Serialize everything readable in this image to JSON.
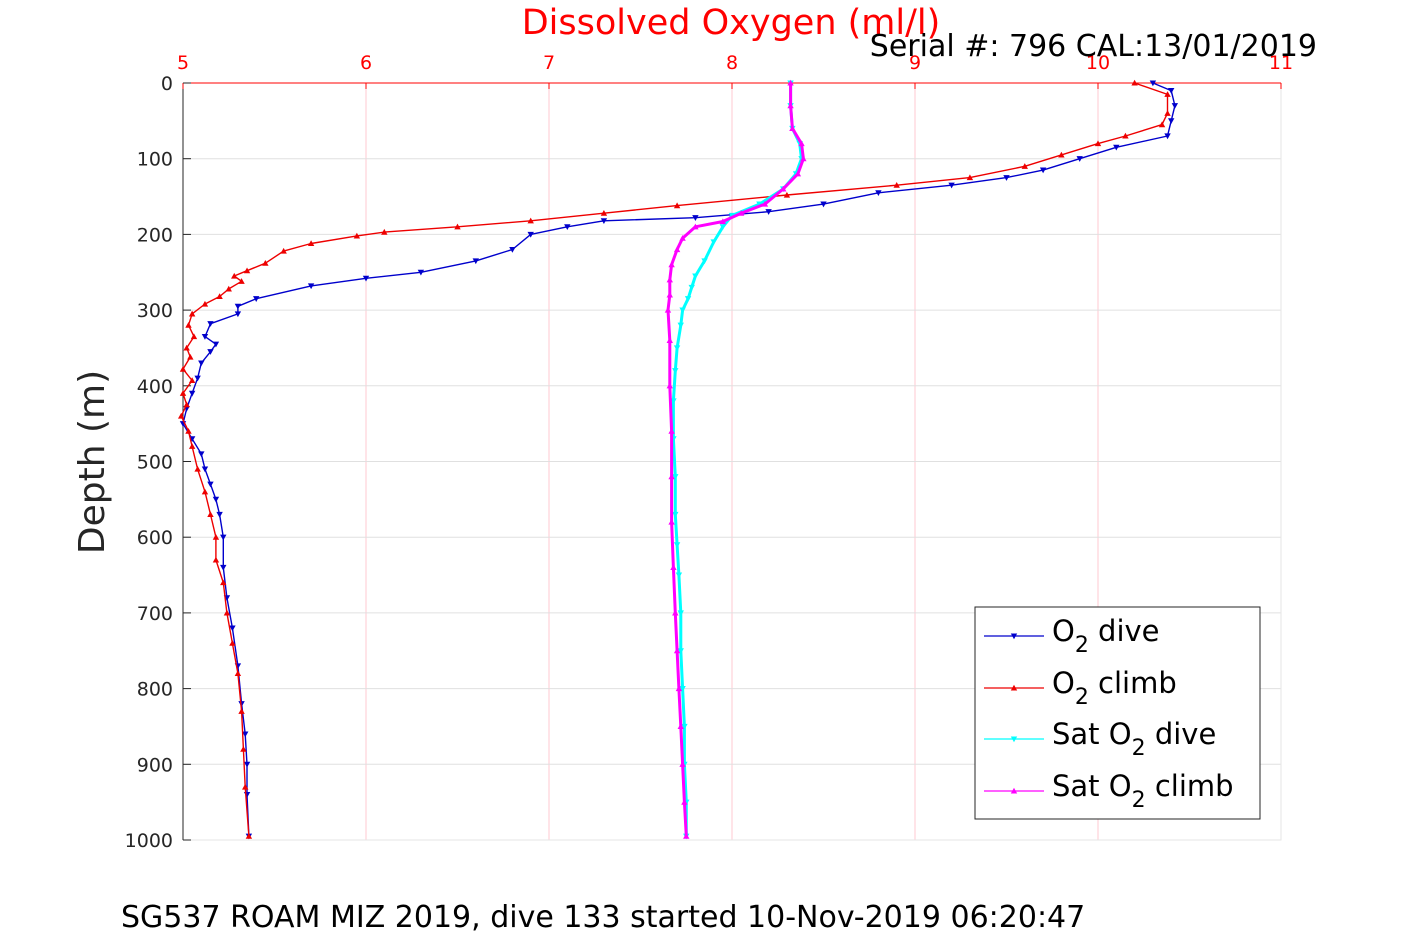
{
  "chart_data": {
    "type": "line",
    "title": "Dissolved Oxygen (ml/l)",
    "subtitle": "Serial #: 796  CAL:13/01/2019",
    "xlabel": "",
    "ylabel": "Depth (m)",
    "footer": "SG537 ROAM MIZ 2019, dive 133 started 10-Nov-2019 06:20:47",
    "xlim": [
      5,
      11
    ],
    "ylim": [
      0,
      1000
    ],
    "y_reversed": true,
    "x_axis_position": "top",
    "x_ticks": [
      "5",
      "6",
      "7",
      "8",
      "9",
      "10",
      "11"
    ],
    "y_ticks": [
      "0",
      "100",
      "200",
      "300",
      "400",
      "500",
      "600",
      "700",
      "800",
      "900",
      "1000"
    ],
    "grid": true,
    "legend_position": "bottom-right",
    "colors": {
      "axis_ticks_x": "#ff0000",
      "grid": "#e0e0e0",
      "grid_x": "#ffc8d2"
    },
    "series": [
      {
        "name": "O₂ dive",
        "legend": {
          "prefix": "O",
          "sub": "2",
          "suffix": " dive"
        },
        "color": "#0000cc",
        "marker": "triangle-down",
        "points": [
          [
            10.3,
            0
          ],
          [
            10.4,
            10
          ],
          [
            10.42,
            30
          ],
          [
            10.4,
            50
          ],
          [
            10.38,
            70
          ],
          [
            10.1,
            85
          ],
          [
            9.9,
            100
          ],
          [
            9.7,
            115
          ],
          [
            9.5,
            125
          ],
          [
            9.2,
            135
          ],
          [
            8.8,
            145
          ],
          [
            8.5,
            160
          ],
          [
            8.2,
            170
          ],
          [
            7.8,
            178
          ],
          [
            7.3,
            182
          ],
          [
            7.1,
            190
          ],
          [
            6.9,
            200
          ],
          [
            6.8,
            220
          ],
          [
            6.6,
            235
          ],
          [
            6.3,
            250
          ],
          [
            6.0,
            258
          ],
          [
            5.7,
            268
          ],
          [
            5.4,
            285
          ],
          [
            5.3,
            295
          ],
          [
            5.3,
            305
          ],
          [
            5.15,
            318
          ],
          [
            5.12,
            335
          ],
          [
            5.18,
            345
          ],
          [
            5.15,
            355
          ],
          [
            5.1,
            370
          ],
          [
            5.08,
            390
          ],
          [
            5.05,
            410
          ],
          [
            5.02,
            430
          ],
          [
            5.0,
            450
          ],
          [
            5.05,
            470
          ],
          [
            5.1,
            490
          ],
          [
            5.12,
            510
          ],
          [
            5.15,
            530
          ],
          [
            5.18,
            550
          ],
          [
            5.2,
            570
          ],
          [
            5.22,
            600
          ],
          [
            5.22,
            640
          ],
          [
            5.24,
            680
          ],
          [
            5.27,
            720
          ],
          [
            5.3,
            770
          ],
          [
            5.32,
            820
          ],
          [
            5.34,
            860
          ],
          [
            5.35,
            900
          ],
          [
            5.35,
            940
          ],
          [
            5.36,
            995
          ]
        ]
      },
      {
        "name": "O₂ climb",
        "legend": {
          "prefix": "O",
          "sub": "2",
          "suffix": " climb"
        },
        "color": "#ee0000",
        "marker": "triangle-up",
        "points": [
          [
            10.2,
            0
          ],
          [
            10.38,
            15
          ],
          [
            10.38,
            40
          ],
          [
            10.35,
            55
          ],
          [
            10.15,
            70
          ],
          [
            10.0,
            80
          ],
          [
            9.8,
            95
          ],
          [
            9.6,
            110
          ],
          [
            9.3,
            125
          ],
          [
            8.9,
            135
          ],
          [
            8.3,
            148
          ],
          [
            7.7,
            162
          ],
          [
            7.3,
            172
          ],
          [
            6.9,
            182
          ],
          [
            6.5,
            190
          ],
          [
            6.1,
            197
          ],
          [
            5.95,
            202
          ],
          [
            5.7,
            212
          ],
          [
            5.55,
            222
          ],
          [
            5.45,
            238
          ],
          [
            5.35,
            248
          ],
          [
            5.28,
            255
          ],
          [
            5.32,
            262
          ],
          [
            5.25,
            272
          ],
          [
            5.2,
            282
          ],
          [
            5.12,
            292
          ],
          [
            5.05,
            305
          ],
          [
            5.03,
            320
          ],
          [
            5.06,
            335
          ],
          [
            5.02,
            350
          ],
          [
            5.04,
            362
          ],
          [
            5.0,
            378
          ],
          [
            5.05,
            393
          ],
          [
            5.0,
            410
          ],
          [
            5.02,
            425
          ],
          [
            4.99,
            440
          ],
          [
            5.03,
            460
          ],
          [
            5.05,
            480
          ],
          [
            5.08,
            510
          ],
          [
            5.12,
            540
          ],
          [
            5.15,
            570
          ],
          [
            5.18,
            600
          ],
          [
            5.18,
            630
          ],
          [
            5.22,
            660
          ],
          [
            5.24,
            700
          ],
          [
            5.27,
            740
          ],
          [
            5.3,
            780
          ],
          [
            5.32,
            830
          ],
          [
            5.33,
            880
          ],
          [
            5.34,
            930
          ],
          [
            5.36,
            995
          ]
        ]
      },
      {
        "name": "Sat O₂ dive",
        "legend": {
          "prefix": "Sat O",
          "sub": "2",
          "suffix": " dive"
        },
        "color": "#00ffff",
        "marker": "triangle-down",
        "points": [
          [
            8.32,
            0
          ],
          [
            8.32,
            30
          ],
          [
            8.33,
            60
          ],
          [
            8.37,
            80
          ],
          [
            8.38,
            100
          ],
          [
            8.35,
            120
          ],
          [
            8.28,
            140
          ],
          [
            8.15,
            160
          ],
          [
            8.0,
            175
          ],
          [
            7.95,
            190
          ],
          [
            7.9,
            210
          ],
          [
            7.85,
            235
          ],
          [
            7.8,
            255
          ],
          [
            7.78,
            270
          ],
          [
            7.76,
            285
          ],
          [
            7.73,
            300
          ],
          [
            7.72,
            320
          ],
          [
            7.7,
            350
          ],
          [
            7.69,
            380
          ],
          [
            7.68,
            420
          ],
          [
            7.68,
            470
          ],
          [
            7.69,
            520
          ],
          [
            7.69,
            570
          ],
          [
            7.7,
            610
          ],
          [
            7.71,
            650
          ],
          [
            7.72,
            700
          ],
          [
            7.72,
            750
          ],
          [
            7.73,
            800
          ],
          [
            7.74,
            850
          ],
          [
            7.74,
            900
          ],
          [
            7.75,
            950
          ],
          [
            7.75,
            995
          ]
        ]
      },
      {
        "name": "Sat O₂ climb",
        "legend": {
          "prefix": "Sat O",
          "sub": "2",
          "suffix": " climb"
        },
        "color": "#ff00ff",
        "marker": "triangle-up",
        "points": [
          [
            8.32,
            0
          ],
          [
            8.32,
            30
          ],
          [
            8.33,
            60
          ],
          [
            8.38,
            80
          ],
          [
            8.39,
            100
          ],
          [
            8.36,
            120
          ],
          [
            8.28,
            140
          ],
          [
            8.18,
            160
          ],
          [
            8.05,
            172
          ],
          [
            7.95,
            183
          ],
          [
            7.8,
            190
          ],
          [
            7.73,
            205
          ],
          [
            7.7,
            220
          ],
          [
            7.67,
            240
          ],
          [
            7.66,
            260
          ],
          [
            7.66,
            280
          ],
          [
            7.65,
            300
          ],
          [
            7.66,
            340
          ],
          [
            7.66,
            400
          ],
          [
            7.67,
            460
          ],
          [
            7.67,
            520
          ],
          [
            7.67,
            580
          ],
          [
            7.68,
            640
          ],
          [
            7.69,
            700
          ],
          [
            7.7,
            750
          ],
          [
            7.71,
            800
          ],
          [
            7.72,
            850
          ],
          [
            7.73,
            900
          ],
          [
            7.74,
            950
          ],
          [
            7.75,
            995
          ]
        ]
      }
    ]
  }
}
